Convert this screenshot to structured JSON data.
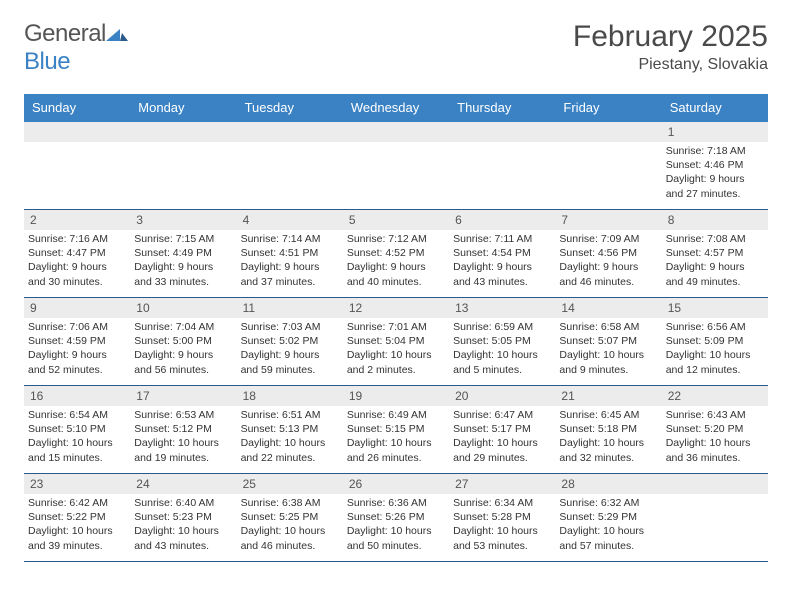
{
  "logo": {
    "word1": "General",
    "word2": "Blue"
  },
  "title": "February 2025",
  "location": "Piestany, Slovakia",
  "colors": {
    "header_bg": "#3b82c4",
    "header_text": "#ffffff",
    "daynum_bg": "#ececec",
    "border": "#2a5a8a",
    "logo_gray": "#555555",
    "logo_blue": "#3b82c4"
  },
  "day_names": [
    "Sunday",
    "Monday",
    "Tuesday",
    "Wednesday",
    "Thursday",
    "Friday",
    "Saturday"
  ],
  "weeks": [
    [
      {
        "n": "",
        "lines": [
          "",
          "",
          "",
          ""
        ]
      },
      {
        "n": "",
        "lines": [
          "",
          "",
          "",
          ""
        ]
      },
      {
        "n": "",
        "lines": [
          "",
          "",
          "",
          ""
        ]
      },
      {
        "n": "",
        "lines": [
          "",
          "",
          "",
          ""
        ]
      },
      {
        "n": "",
        "lines": [
          "",
          "",
          "",
          ""
        ]
      },
      {
        "n": "",
        "lines": [
          "",
          "",
          "",
          ""
        ]
      },
      {
        "n": "1",
        "lines": [
          "Sunrise: 7:18 AM",
          "Sunset: 4:46 PM",
          "Daylight: 9 hours",
          "and 27 minutes."
        ]
      }
    ],
    [
      {
        "n": "2",
        "lines": [
          "Sunrise: 7:16 AM",
          "Sunset: 4:47 PM",
          "Daylight: 9 hours",
          "and 30 minutes."
        ]
      },
      {
        "n": "3",
        "lines": [
          "Sunrise: 7:15 AM",
          "Sunset: 4:49 PM",
          "Daylight: 9 hours",
          "and 33 minutes."
        ]
      },
      {
        "n": "4",
        "lines": [
          "Sunrise: 7:14 AM",
          "Sunset: 4:51 PM",
          "Daylight: 9 hours",
          "and 37 minutes."
        ]
      },
      {
        "n": "5",
        "lines": [
          "Sunrise: 7:12 AM",
          "Sunset: 4:52 PM",
          "Daylight: 9 hours",
          "and 40 minutes."
        ]
      },
      {
        "n": "6",
        "lines": [
          "Sunrise: 7:11 AM",
          "Sunset: 4:54 PM",
          "Daylight: 9 hours",
          "and 43 minutes."
        ]
      },
      {
        "n": "7",
        "lines": [
          "Sunrise: 7:09 AM",
          "Sunset: 4:56 PM",
          "Daylight: 9 hours",
          "and 46 minutes."
        ]
      },
      {
        "n": "8",
        "lines": [
          "Sunrise: 7:08 AM",
          "Sunset: 4:57 PM",
          "Daylight: 9 hours",
          "and 49 minutes."
        ]
      }
    ],
    [
      {
        "n": "9",
        "lines": [
          "Sunrise: 7:06 AM",
          "Sunset: 4:59 PM",
          "Daylight: 9 hours",
          "and 52 minutes."
        ]
      },
      {
        "n": "10",
        "lines": [
          "Sunrise: 7:04 AM",
          "Sunset: 5:00 PM",
          "Daylight: 9 hours",
          "and 56 minutes."
        ]
      },
      {
        "n": "11",
        "lines": [
          "Sunrise: 7:03 AM",
          "Sunset: 5:02 PM",
          "Daylight: 9 hours",
          "and 59 minutes."
        ]
      },
      {
        "n": "12",
        "lines": [
          "Sunrise: 7:01 AM",
          "Sunset: 5:04 PM",
          "Daylight: 10 hours",
          "and 2 minutes."
        ]
      },
      {
        "n": "13",
        "lines": [
          "Sunrise: 6:59 AM",
          "Sunset: 5:05 PM",
          "Daylight: 10 hours",
          "and 5 minutes."
        ]
      },
      {
        "n": "14",
        "lines": [
          "Sunrise: 6:58 AM",
          "Sunset: 5:07 PM",
          "Daylight: 10 hours",
          "and 9 minutes."
        ]
      },
      {
        "n": "15",
        "lines": [
          "Sunrise: 6:56 AM",
          "Sunset: 5:09 PM",
          "Daylight: 10 hours",
          "and 12 minutes."
        ]
      }
    ],
    [
      {
        "n": "16",
        "lines": [
          "Sunrise: 6:54 AM",
          "Sunset: 5:10 PM",
          "Daylight: 10 hours",
          "and 15 minutes."
        ]
      },
      {
        "n": "17",
        "lines": [
          "Sunrise: 6:53 AM",
          "Sunset: 5:12 PM",
          "Daylight: 10 hours",
          "and 19 minutes."
        ]
      },
      {
        "n": "18",
        "lines": [
          "Sunrise: 6:51 AM",
          "Sunset: 5:13 PM",
          "Daylight: 10 hours",
          "and 22 minutes."
        ]
      },
      {
        "n": "19",
        "lines": [
          "Sunrise: 6:49 AM",
          "Sunset: 5:15 PM",
          "Daylight: 10 hours",
          "and 26 minutes."
        ]
      },
      {
        "n": "20",
        "lines": [
          "Sunrise: 6:47 AM",
          "Sunset: 5:17 PM",
          "Daylight: 10 hours",
          "and 29 minutes."
        ]
      },
      {
        "n": "21",
        "lines": [
          "Sunrise: 6:45 AM",
          "Sunset: 5:18 PM",
          "Daylight: 10 hours",
          "and 32 minutes."
        ]
      },
      {
        "n": "22",
        "lines": [
          "Sunrise: 6:43 AM",
          "Sunset: 5:20 PM",
          "Daylight: 10 hours",
          "and 36 minutes."
        ]
      }
    ],
    [
      {
        "n": "23",
        "lines": [
          "Sunrise: 6:42 AM",
          "Sunset: 5:22 PM",
          "Daylight: 10 hours",
          "and 39 minutes."
        ]
      },
      {
        "n": "24",
        "lines": [
          "Sunrise: 6:40 AM",
          "Sunset: 5:23 PM",
          "Daylight: 10 hours",
          "and 43 minutes."
        ]
      },
      {
        "n": "25",
        "lines": [
          "Sunrise: 6:38 AM",
          "Sunset: 5:25 PM",
          "Daylight: 10 hours",
          "and 46 minutes."
        ]
      },
      {
        "n": "26",
        "lines": [
          "Sunrise: 6:36 AM",
          "Sunset: 5:26 PM",
          "Daylight: 10 hours",
          "and 50 minutes."
        ]
      },
      {
        "n": "27",
        "lines": [
          "Sunrise: 6:34 AM",
          "Sunset: 5:28 PM",
          "Daylight: 10 hours",
          "and 53 minutes."
        ]
      },
      {
        "n": "28",
        "lines": [
          "Sunrise: 6:32 AM",
          "Sunset: 5:29 PM",
          "Daylight: 10 hours",
          "and 57 minutes."
        ]
      },
      {
        "n": "",
        "lines": [
          "",
          "",
          "",
          ""
        ]
      }
    ]
  ]
}
